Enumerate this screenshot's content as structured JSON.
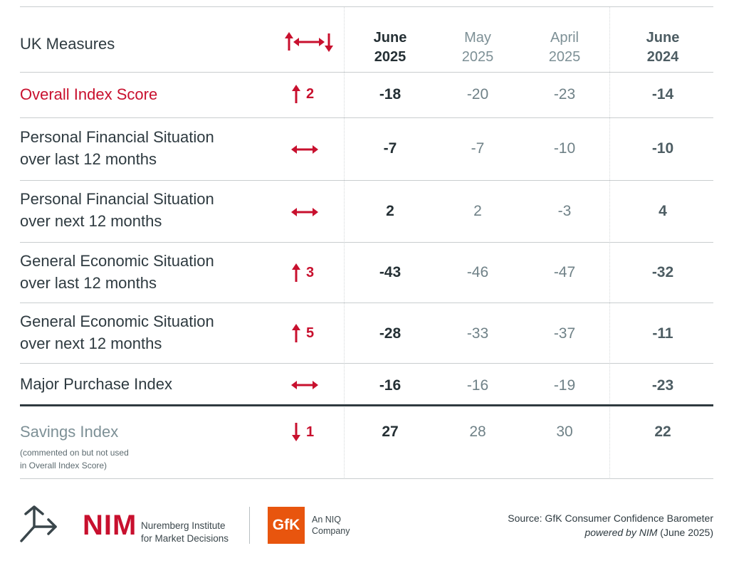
{
  "header": {
    "title": "UK Measures",
    "columns": [
      {
        "line1": "June",
        "line2": "2025"
      },
      {
        "line1": "May",
        "line2": "2025"
      },
      {
        "line1": "April",
        "line2": "2025"
      },
      {
        "line1": "June",
        "line2": "2024"
      }
    ]
  },
  "rows": [
    {
      "label1": "Overall Index Score",
      "label2": "",
      "direction": "up",
      "change": "2",
      "values": [
        "-18",
        "-20",
        "-23",
        "-14"
      ]
    },
    {
      "label1": "Personal Financial Situation",
      "label2": "over last 12 months",
      "direction": "flat",
      "change": "",
      "values": [
        "-7",
        "-7",
        "-10",
        "-10"
      ]
    },
    {
      "label1": "Personal Financial Situation",
      "label2": "over next 12 months",
      "direction": "flat",
      "change": "",
      "values": [
        "2",
        "2",
        "-3",
        "4"
      ]
    },
    {
      "label1": "General Economic Situation",
      "label2": "over last 12 months",
      "direction": "up",
      "change": "3",
      "values": [
        "-43",
        "-46",
        "-47",
        "-32"
      ]
    },
    {
      "label1": "General Economic Situation",
      "label2": "over next 12 months",
      "direction": "up",
      "change": "5",
      "values": [
        "-28",
        "-33",
        "-37",
        "-11"
      ]
    },
    {
      "label1": "Major Purchase Index",
      "label2": "",
      "direction": "flat",
      "change": "",
      "values": [
        "-16",
        "-16",
        "-19",
        "-23"
      ]
    }
  ],
  "savings": {
    "label": "Savings Index",
    "note1": "(commented on but not used",
    "note2": "in Overall Index Score)",
    "direction": "down",
    "change": "1",
    "values": [
      "27",
      "28",
      "30",
      "22"
    ]
  },
  "footer": {
    "nim_word": "NIM",
    "nim_line1": "Nuremberg Institute",
    "nim_line2": "for Market Decisions",
    "gfk_word": "GfK",
    "gfk_line1": "An NIQ",
    "gfk_line2": "Company",
    "source_line1": "Source: GfK Consumer Confidence Barometer",
    "source_italic": "powered by NIM",
    "source_suffix": " (June 2025)"
  },
  "colors": {
    "accent_red": "#c8102e",
    "text_dark": "#2e3a40",
    "text_grey": "#6f8187",
    "gfk_orange": "#e8550e"
  }
}
